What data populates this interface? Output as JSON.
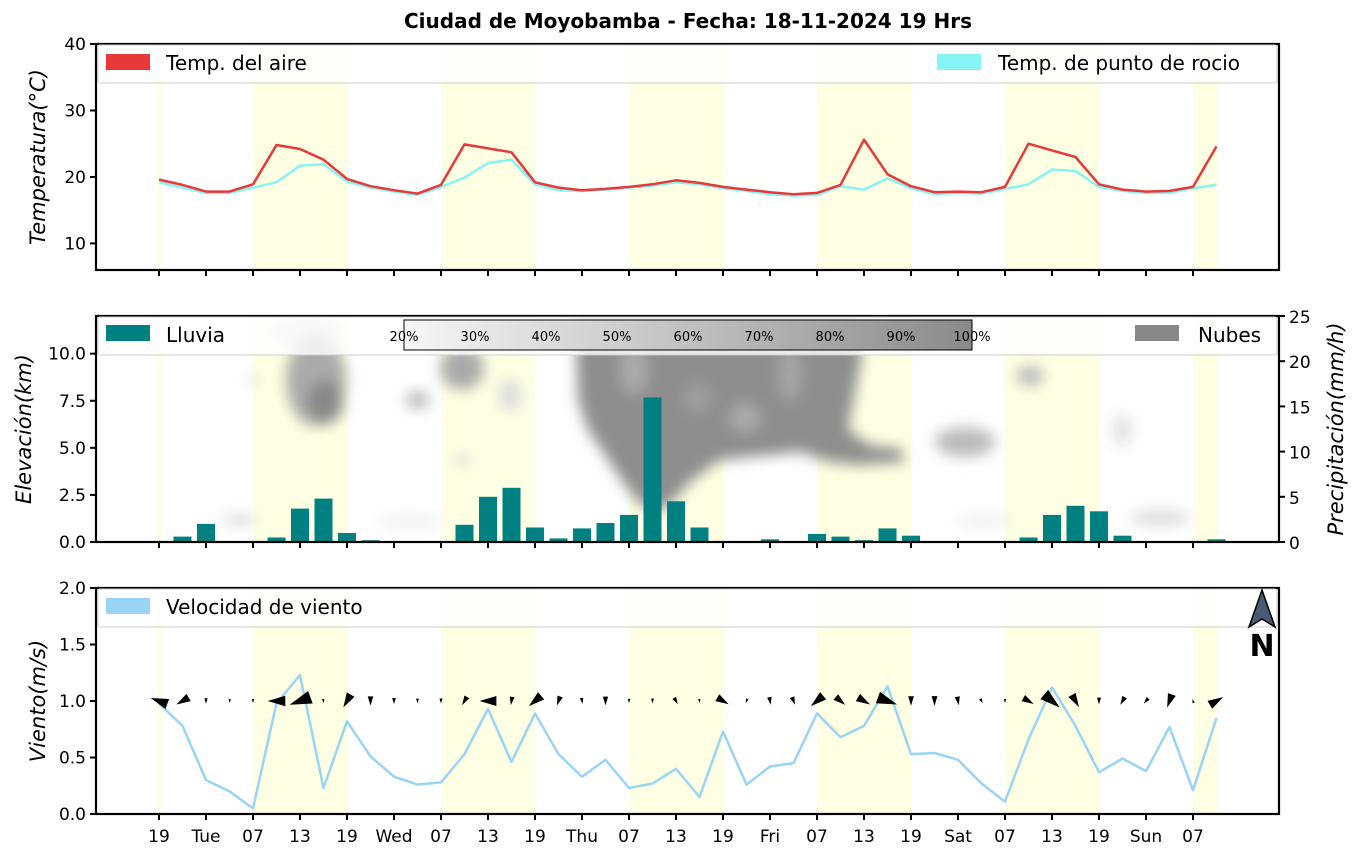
{
  "title": "Ciudad de Moyobamba   -   Fecha: 18-11-2024 19 Hrs",
  "compass_label": "N",
  "colors": {
    "temp_air": "#e8393a",
    "temp_dew": "#84f4f4",
    "rain": "#008080",
    "clouds": "#888888",
    "wind": "#99d4f7",
    "day_band": "#ffffe3"
  },
  "x_ticks": [
    "19",
    "Tue",
    "07",
    "13",
    "19",
    "Wed",
    "07",
    "13",
    "19",
    "Thu",
    "07",
    "13",
    "19",
    "Fri",
    "07",
    "13",
    "19",
    "Sat",
    "07",
    "13",
    "19",
    "Sun",
    "07"
  ],
  "chart_data": [
    {
      "type": "line",
      "ylabel": "Temperatura(°C)",
      "ylim": [
        6,
        40
      ],
      "yticks": [
        10,
        20,
        30,
        40
      ],
      "legend": [
        "Temp. del aire",
        "Temp. de punto de rocio"
      ],
      "series": [
        {
          "name": "Temp. del aire",
          "values": [
            19.6,
            18.8,
            17.8,
            17.8,
            18.9,
            24.8,
            24.2,
            22.6,
            19.7,
            18.6,
            18.0,
            17.5,
            18.8,
            24.9,
            24.3,
            23.7,
            19.2,
            18.4,
            18.0,
            18.2,
            18.5,
            18.9,
            19.5,
            19.1,
            18.5,
            18.1,
            17.7,
            17.4,
            17.6,
            18.8,
            25.6,
            20.4,
            18.6,
            17.7,
            17.8,
            17.7,
            18.5,
            25.0,
            24.0,
            23.0,
            18.9,
            18.1,
            17.8,
            17.9,
            18.5,
            24.6
          ]
        },
        {
          "name": "Temp. de punto de rocio",
          "values": [
            19.2,
            18.4,
            17.6,
            17.6,
            18.4,
            19.2,
            21.7,
            21.9,
            19.3,
            18.4,
            17.8,
            17.3,
            18.5,
            19.9,
            22.1,
            22.6,
            18.9,
            18.0,
            17.9,
            18.1,
            18.4,
            18.7,
            19.2,
            18.9,
            18.3,
            17.9,
            17.4,
            17.2,
            17.3,
            18.6,
            18.1,
            19.8,
            18.3,
            17.4,
            17.6,
            17.5,
            18.2,
            18.9,
            21.1,
            20.9,
            18.5,
            17.9,
            17.6,
            17.6,
            18.3,
            18.8
          ]
        }
      ]
    },
    {
      "type": "bar",
      "ylabel": "Elevación(km)",
      "ylim": [
        0,
        12
      ],
      "yticks": [
        0.0,
        2.5,
        5.0,
        7.5,
        10.0
      ],
      "ylabel_right": "Precipitación(mm/h)",
      "ylim_right": [
        0,
        25
      ],
      "yticks_right": [
        0,
        5,
        10,
        15,
        20,
        25
      ],
      "legend": [
        "Lluvia",
        "Nubes"
      ],
      "colorbar_labels": [
        "20%",
        "30%",
        "40%",
        "50%",
        "60%",
        "70%",
        "80%",
        "90%",
        "100%"
      ],
      "series": [
        {
          "name": "Lluvia",
          "values": [
            0,
            0.6,
            2.0,
            0.1,
            0.1,
            0.5,
            3.7,
            4.8,
            1.0,
            0.2,
            0,
            0,
            0.1,
            1.9,
            5.0,
            6.0,
            1.6,
            0.4,
            1.5,
            2.1,
            3.0,
            16.0,
            4.5,
            1.6,
            0.1,
            0,
            0.3,
            0.1,
            0.9,
            0.6,
            0.2,
            1.5,
            0.7,
            0,
            0,
            0,
            0,
            0.5,
            3.0,
            4.0,
            3.4,
            0.7,
            0,
            0,
            0.1,
            0.3
          ]
        }
      ]
    },
    {
      "type": "line",
      "ylabel": "Viento(m/s)",
      "ylim": [
        0,
        2
      ],
      "yticks": [
        0.0,
        0.5,
        1.0,
        1.5,
        2.0
      ],
      "legend": [
        "Velocidad de viento"
      ],
      "series": [
        {
          "name": "Velocidad de viento",
          "values": [
            0.98,
            0.78,
            0.3,
            0.2,
            0.05,
            0.98,
            1.23,
            0.23,
            0.82,
            0.51,
            0.33,
            0.26,
            0.28,
            0.53,
            0.93,
            0.46,
            0.89,
            0.53,
            0.33,
            0.48,
            0.23,
            0.27,
            0.4,
            0.15,
            0.73,
            0.26,
            0.42,
            0.45,
            0.89,
            0.68,
            0.78,
            1.13,
            0.53,
            0.54,
            0.48,
            0.27,
            0.11,
            0.66,
            1.12,
            0.78,
            0.37,
            0.49,
            0.38,
            0.77,
            0.21,
            0.85
          ]
        }
      ]
    }
  ]
}
